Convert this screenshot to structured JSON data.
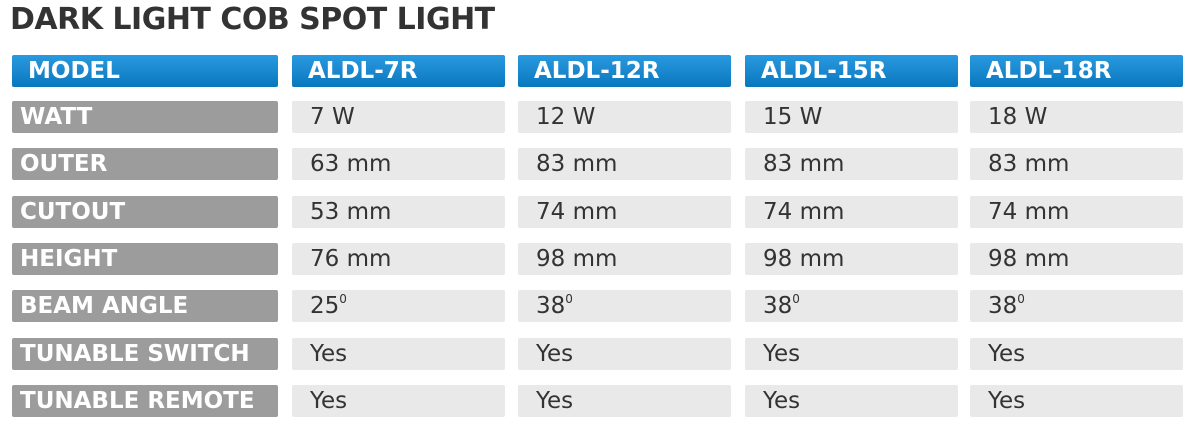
{
  "header": {
    "title": "DARK LIGHT COB SPOT LIGHT"
  },
  "table": {
    "columns": [
      "MODEL",
      "ALDL-7R",
      "ALDL-12R",
      "ALDL-15R",
      "ALDL-18R"
    ],
    "rows": [
      [
        "WATT",
        "7 W",
        "12 W",
        "15 W",
        "18 W"
      ],
      [
        "OUTER",
        "63 mm",
        "83 mm",
        "83 mm",
        "83 mm"
      ],
      [
        "CUTOUT",
        "53 mm",
        "74 mm",
        "74 mm",
        "74 mm"
      ],
      [
        "HEIGHT",
        "76 mm",
        "98 mm",
        "98 mm",
        "98 mm"
      ],
      [
        "BEAM ANGLE",
        {
          "text": "25",
          "sup": "0"
        },
        {
          "text": "38",
          "sup": "0"
        },
        {
          "text": "38",
          "sup": "0"
        },
        {
          "text": "38",
          "sup": "0"
        }
      ],
      [
        "TUNABLE SWITCH",
        "Yes",
        "Yes",
        "Yes",
        "Yes"
      ],
      [
        "TUNABLE REMOTE",
        "Yes",
        "Yes",
        "Yes",
        "Yes"
      ]
    ]
  }
}
